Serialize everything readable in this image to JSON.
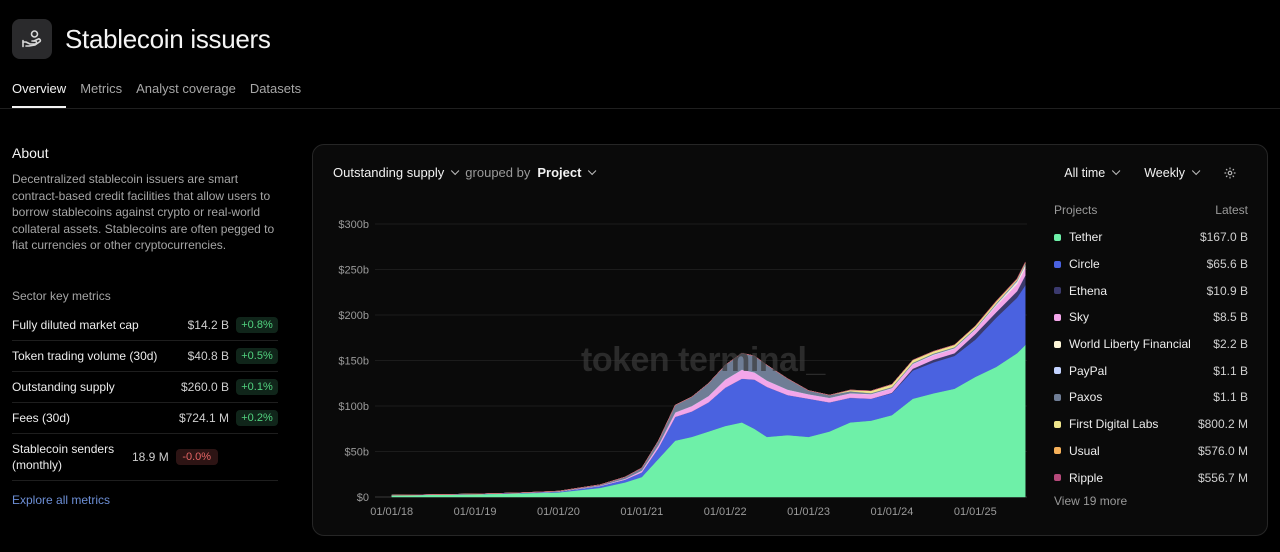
{
  "header": {
    "title": "Stablecoin issuers",
    "icon": "hand-coins-icon"
  },
  "tabs": [
    {
      "label": "Overview",
      "active": true
    },
    {
      "label": "Metrics",
      "active": false
    },
    {
      "label": "Analyst coverage",
      "active": false
    },
    {
      "label": "Datasets",
      "active": false
    }
  ],
  "about": {
    "heading": "About",
    "text": "Decentralized stablecoin issuers are smart contract-based credit facilities that allow users to borrow stablecoins against crypto or real-world collateral assets. Stablecoins are often pegged to fiat currencies or other cryptocurrencies."
  },
  "sector_metrics": {
    "heading": "Sector key metrics",
    "rows": [
      {
        "label": "Fully diluted market cap",
        "value": "$14.2 B",
        "change": "+0.8%",
        "trend": "up"
      },
      {
        "label": "Token trading volume (30d)",
        "value": "$40.8 B",
        "change": "+0.5%",
        "trend": "up"
      },
      {
        "label": "Outstanding supply",
        "value": "$260.0 B",
        "change": "+0.1%",
        "trend": "up"
      },
      {
        "label": "Fees (30d)",
        "value": "$724.1 M",
        "change": "+0.2%",
        "trend": "up"
      },
      {
        "label": "Stablecoin senders (monthly)",
        "value": "18.9 M",
        "change": "-0.0%",
        "trend": "down"
      }
    ],
    "explore_label": "Explore all metrics"
  },
  "toolbar": {
    "metric": "Outstanding supply",
    "grouped_by_label": "grouped by",
    "group": "Project",
    "range": "All time",
    "interval": "Weekly"
  },
  "watermark": "token terminal_",
  "legend": {
    "col_projects": "Projects",
    "col_latest": "Latest",
    "items": [
      {
        "name": "Tether",
        "value": "$167.0 B",
        "color": "#6ef0a8"
      },
      {
        "name": "Circle",
        "value": "$65.6 B",
        "color": "#4a62e0"
      },
      {
        "name": "Ethena",
        "value": "$10.9 B",
        "color": "#3b3a6e"
      },
      {
        "name": "Sky",
        "value": "$8.5 B",
        "color": "#f3a6ea"
      },
      {
        "name": "World Liberty Financial",
        "value": "$2.2 B",
        "color": "#fdf6d8"
      },
      {
        "name": "PayPal",
        "value": "$1.1 B",
        "color": "#c3d3ff"
      },
      {
        "name": "Paxos",
        "value": "$1.1 B",
        "color": "#6f7d95"
      },
      {
        "name": "First Digital Labs",
        "value": "$800.2 M",
        "color": "#efe58c"
      },
      {
        "name": "Usual",
        "value": "$576.0 M",
        "color": "#f6b15a"
      },
      {
        "name": "Ripple",
        "value": "$556.7 M",
        "color": "#b5497a"
      }
    ],
    "view_more": "View 19 more"
  },
  "chart_data": {
    "type": "area",
    "stacked": true,
    "ylim": [
      0,
      300
    ],
    "y_unit": "b",
    "y_ticks": [
      "$0",
      "$50b",
      "$100b",
      "$150b",
      "$200b",
      "$250b",
      "$300b"
    ],
    "x_ticks": [
      "01/01/18",
      "01/01/19",
      "01/01/20",
      "01/01/21",
      "01/01/22",
      "01/01/23",
      "01/01/24",
      "01/01/25"
    ],
    "x": [
      2018.0,
      2019.0,
      2019.5,
      2020.0,
      2020.5,
      2020.8,
      2021.0,
      2021.2,
      2021.4,
      2021.6,
      2021.8,
      2022.0,
      2022.2,
      2022.35,
      2022.5,
      2022.75,
      2023.0,
      2023.25,
      2023.5,
      2023.75,
      2024.0,
      2024.25,
      2024.5,
      2024.75,
      2025.0,
      2025.25,
      2025.5,
      2025.6
    ],
    "series": [
      {
        "name": "Tether",
        "values": [
          2,
          3,
          4,
          5,
          10,
          16,
          22,
          42,
          62,
          66,
          72,
          78,
          82,
          75,
          66,
          68,
          66,
          72,
          82,
          84,
          90,
          108,
          114,
          119,
          132,
          143,
          158,
          167
        ]
      },
      {
        "name": "Circle",
        "values": [
          0,
          0.3,
          0.5,
          0.8,
          2,
          3,
          5,
          12,
          26,
          28,
          32,
          42,
          48,
          54,
          55,
          44,
          42,
          32,
          27,
          24,
          24,
          31,
          34,
          36,
          41,
          54,
          61,
          65.6
        ]
      },
      {
        "name": "Ethena",
        "values": [
          0,
          0,
          0,
          0,
          0,
          0,
          0,
          0,
          0,
          0,
          0,
          0,
          0,
          0,
          0,
          0,
          0,
          0,
          0,
          0,
          0.5,
          2,
          3,
          3,
          6,
          6,
          7,
          10.9
        ]
      },
      {
        "name": "Sky",
        "values": [
          0,
          0,
          0,
          0.2,
          0.5,
          1,
          2,
          3,
          5,
          6,
          7,
          9,
          10,
          8,
          7,
          6,
          5,
          5,
          5,
          5,
          5,
          5,
          5,
          5,
          5,
          7,
          8,
          8.5
        ]
      },
      {
        "name": "World Liberty Financial",
        "values": [
          0,
          0,
          0,
          0,
          0,
          0,
          0,
          0,
          0,
          0,
          0,
          0,
          0,
          0,
          0,
          0,
          0,
          0,
          0,
          0,
          0,
          0,
          0,
          0,
          0,
          0.8,
          2,
          2.2
        ]
      },
      {
        "name": "PayPal",
        "values": [
          0,
          0,
          0,
          0,
          0,
          0,
          0,
          0,
          0,
          0,
          0,
          0,
          0,
          0,
          0,
          0,
          0,
          0,
          0.1,
          0.2,
          0.3,
          0.5,
          0.7,
          0.6,
          0.5,
          0.8,
          1,
          1.1
        ]
      },
      {
        "name": "Paxos",
        "values": [
          0,
          0,
          0,
          0.5,
          1,
          2,
          3,
          5,
          8,
          10,
          14,
          16,
          18,
          18,
          17,
          12,
          4,
          3,
          2,
          1,
          1,
          1,
          1,
          1,
          1,
          1,
          1,
          1.1
        ]
      },
      {
        "name": "First Digital Labs",
        "values": [
          0,
          0,
          0,
          0,
          0,
          0,
          0,
          0,
          0,
          0,
          0,
          0,
          0,
          0,
          0,
          0,
          0,
          0,
          1.5,
          2.5,
          3,
          3,
          2.5,
          2.5,
          2,
          2,
          1,
          0.8
        ]
      },
      {
        "name": "Usual",
        "values": [
          0,
          0,
          0,
          0,
          0,
          0,
          0,
          0,
          0,
          0,
          0,
          0,
          0,
          0,
          0,
          0,
          0,
          0,
          0,
          0,
          0,
          0,
          0,
          0.2,
          0.5,
          0.6,
          0.6,
          0.576
        ]
      },
      {
        "name": "Ripple",
        "values": [
          0,
          0,
          0,
          0,
          0,
          0,
          0,
          0,
          0,
          0,
          0,
          0,
          0,
          0,
          0,
          0,
          0,
          0,
          0,
          0,
          0,
          0,
          0,
          0,
          0.1,
          0.3,
          0.5,
          0.557
        ]
      }
    ],
    "grid": true,
    "legend_position": "right"
  }
}
